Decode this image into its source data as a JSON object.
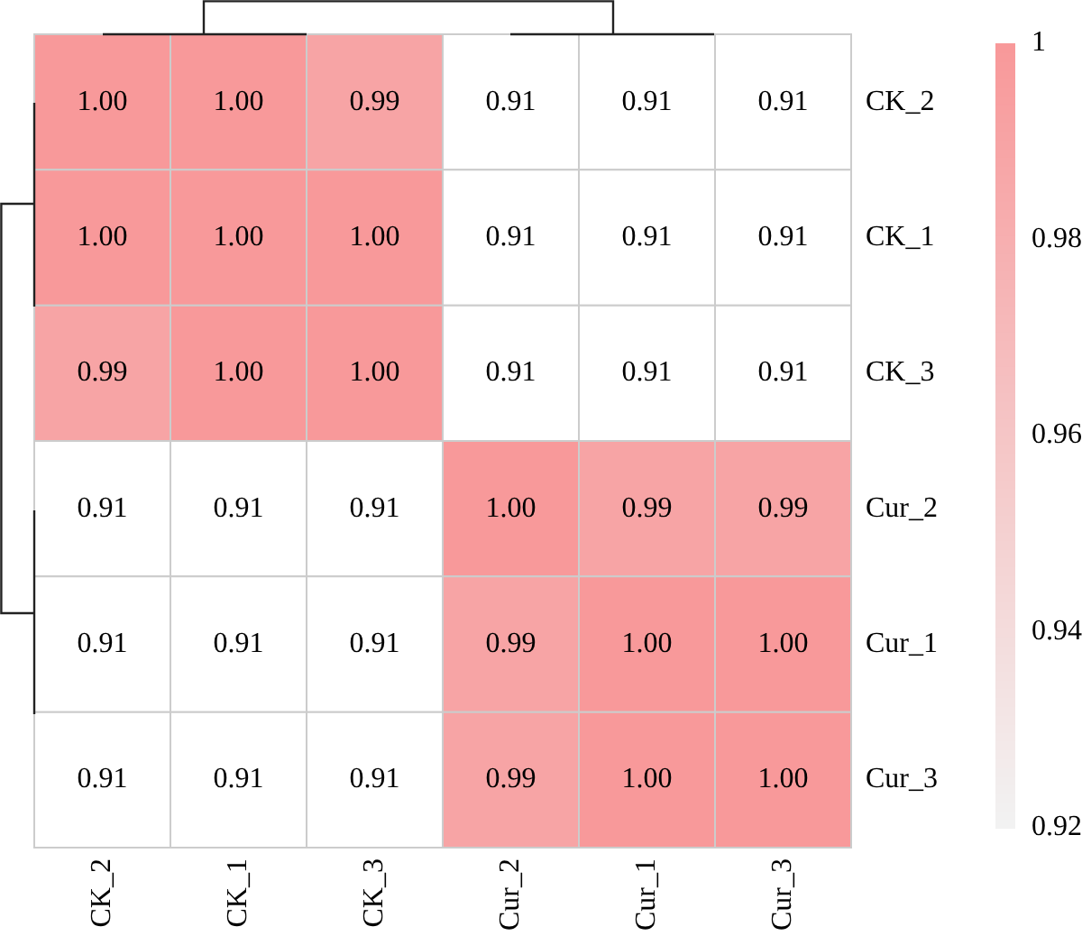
{
  "chart_data": {
    "type": "heatmap",
    "categories": [
      "CK_2",
      "CK_1",
      "CK_3",
      "Cur_2",
      "Cur_1",
      "Cur_3"
    ],
    "y_categories": [
      "CK_2",
      "CK_1",
      "CK_3",
      "Cur_2",
      "Cur_1",
      "Cur_3"
    ],
    "cells": [
      [
        1.0,
        1.0,
        0.99,
        0.91,
        0.91,
        0.91
      ],
      [
        1.0,
        1.0,
        1.0,
        0.91,
        0.91,
        0.91
      ],
      [
        0.99,
        1.0,
        1.0,
        0.91,
        0.91,
        0.91
      ],
      [
        0.91,
        0.91,
        0.91,
        1.0,
        0.99,
        0.99
      ],
      [
        0.91,
        0.91,
        0.91,
        0.99,
        1.0,
        1.0
      ],
      [
        0.91,
        0.91,
        0.91,
        0.99,
        1.0,
        1.0
      ]
    ],
    "cell_labels": [
      [
        "1.00",
        "1.00",
        "0.99",
        "0.91",
        "0.91",
        "0.91"
      ],
      [
        "1.00",
        "1.00",
        "1.00",
        "0.91",
        "0.91",
        "0.91"
      ],
      [
        "0.99",
        "1.00",
        "1.00",
        "0.91",
        "0.91",
        "0.91"
      ],
      [
        "0.91",
        "0.91",
        "0.91",
        "1.00",
        "0.99",
        "0.99"
      ],
      [
        "0.91",
        "0.91",
        "0.91",
        "0.99",
        "1.00",
        "1.00"
      ],
      [
        "0.91",
        "0.91",
        "0.91",
        "0.99",
        "1.00",
        "1.00"
      ]
    ],
    "clim": [
      0.92,
      1
    ],
    "cticks": [
      0.92,
      0.94,
      0.96,
      0.98,
      1
    ]
  }
}
